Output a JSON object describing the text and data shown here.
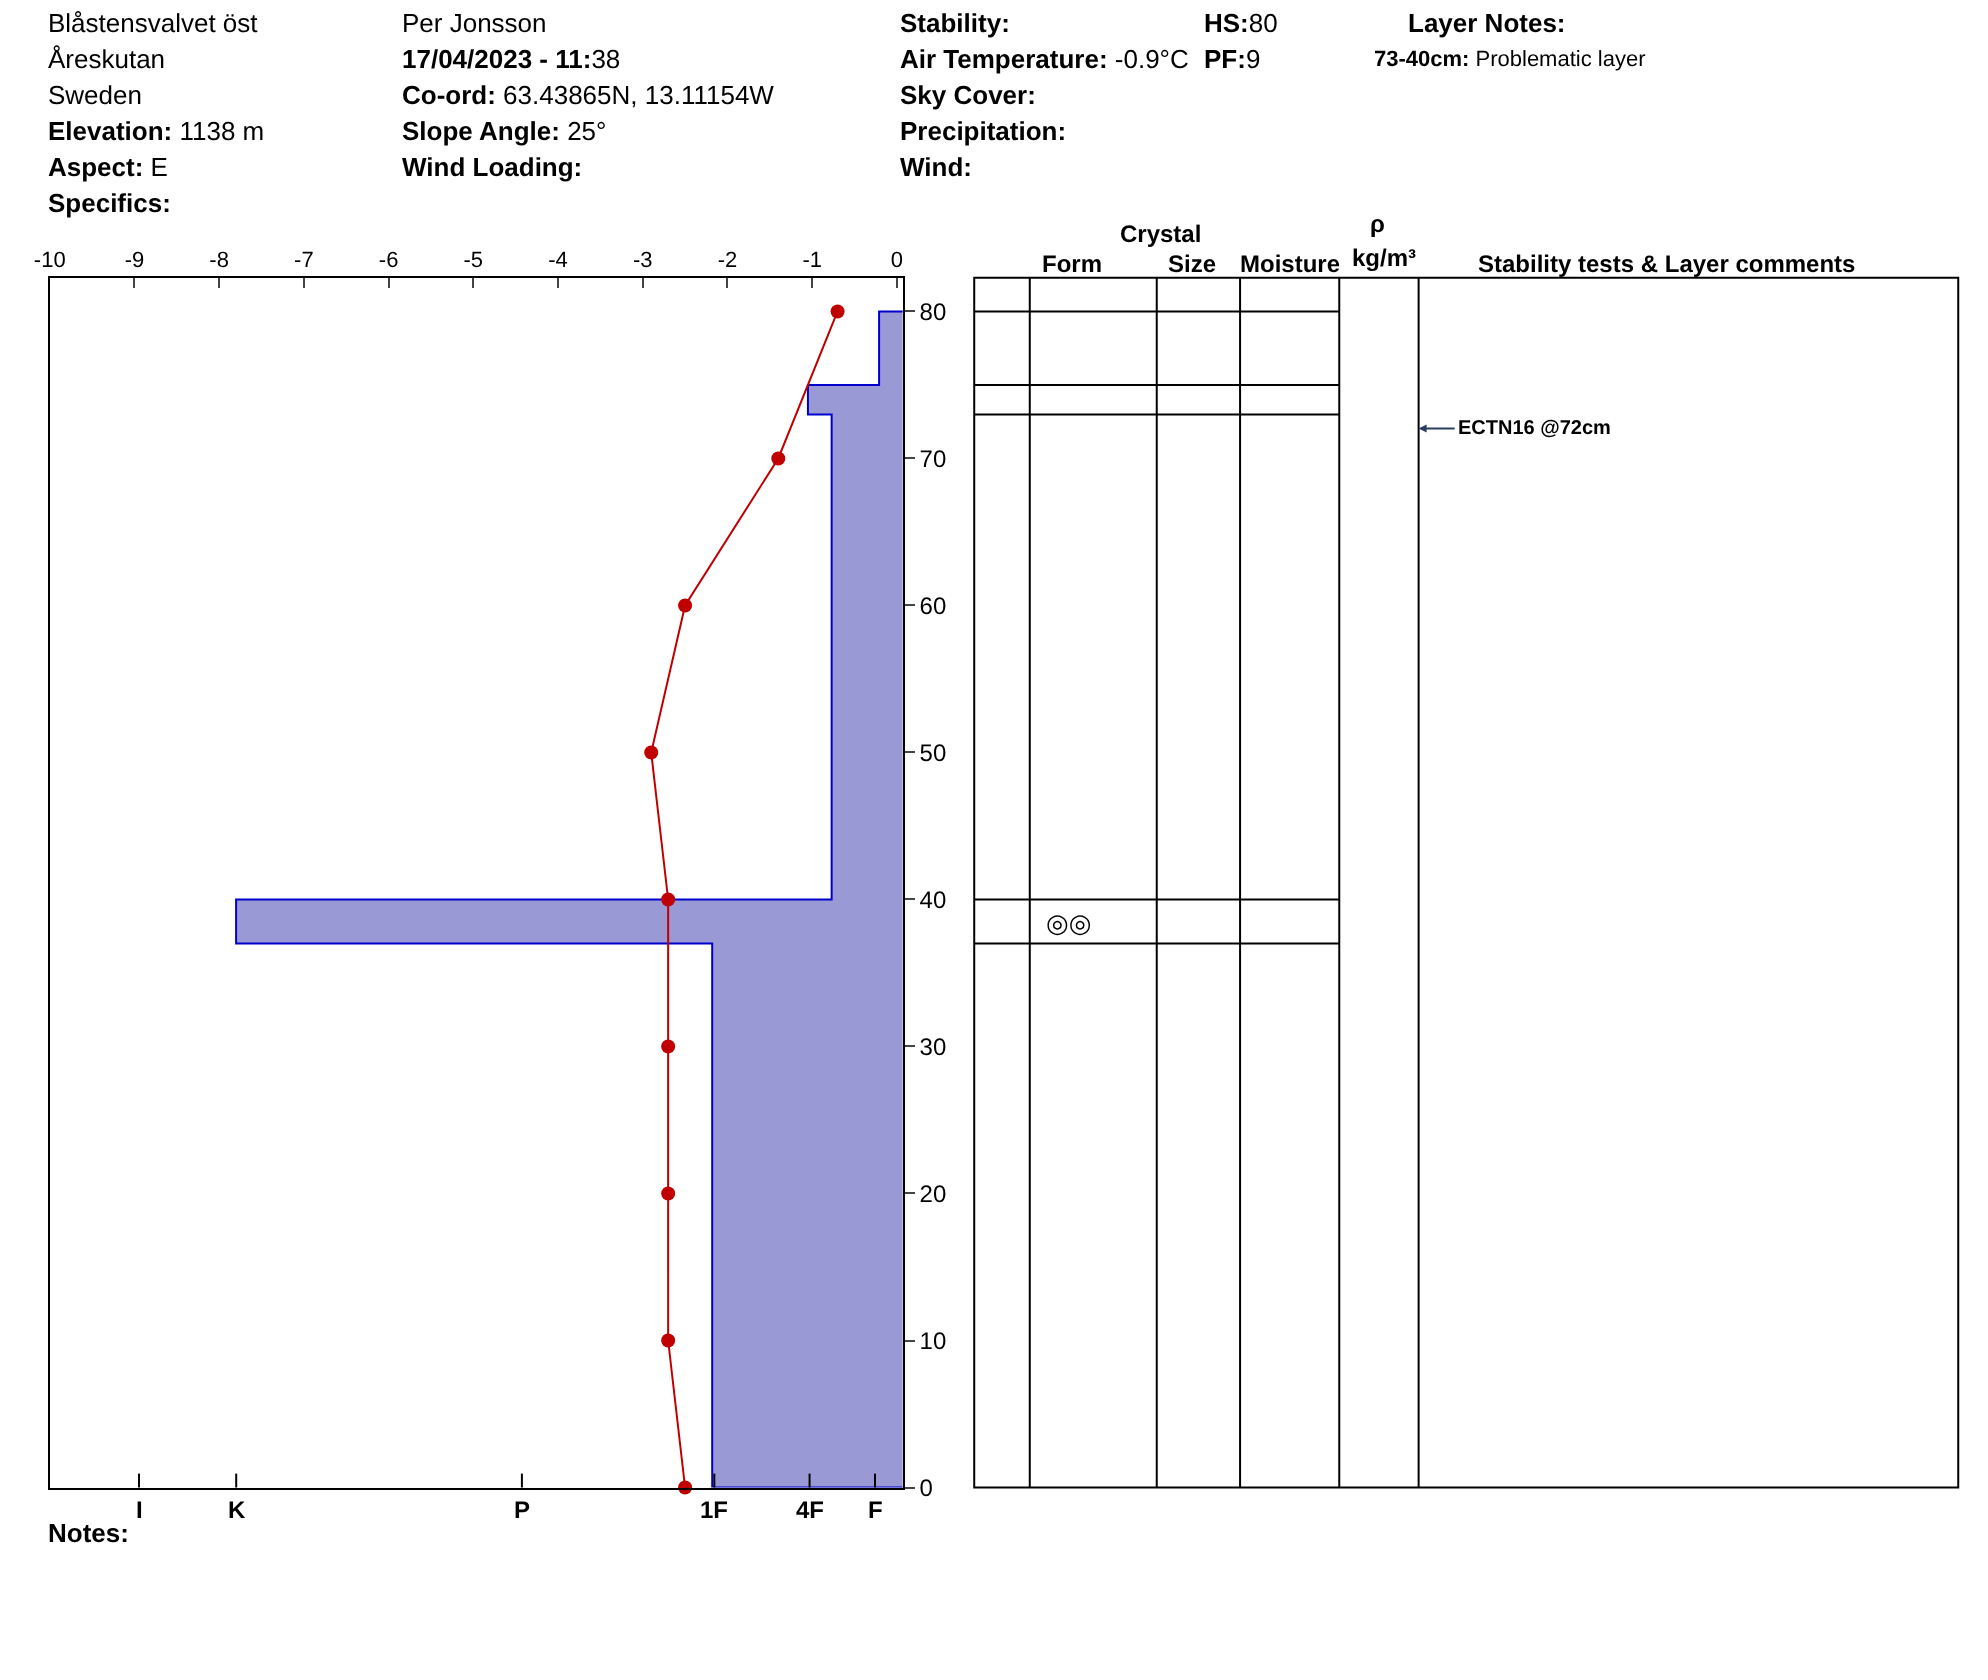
{
  "chart_data": {
    "type": "line",
    "xlim": [
      -10,
      0.07
    ],
    "xticks": [
      -10,
      -9,
      -8,
      -7,
      -6,
      -5,
      -4,
      -3,
      -2,
      -1,
      0
    ],
    "ylim": [
      0,
      82.3
    ],
    "yticks": [
      0,
      10,
      20,
      30,
      40,
      50,
      60,
      70,
      80
    ],
    "series": [
      {
        "type": "area",
        "color": "#9999d6",
        "x": [
          0.07,
          -0.21,
          -0.21,
          -1.05,
          -1.05,
          -0.77,
          -0.77,
          -7.8,
          -7.8,
          -2.18,
          -2.18,
          0.07
        ],
        "values": [
          80,
          80,
          75,
          75,
          73,
          73,
          40,
          40,
          37,
          37,
          0,
          0
        ]
      },
      {
        "color": "#c00000",
        "marker": "circle",
        "x": [
          -0.7,
          -1.4,
          -2.5,
          -2.9,
          -2.7,
          -2.7,
          -2.7,
          -2.7,
          -2.5
        ],
        "values": [
          80,
          70,
          60,
          50,
          40,
          30,
          20,
          10,
          0
        ]
      }
    ],
    "annotations": [
      "Blåstensvalvet öst",
      "Per Jonsson",
      "Stability:",
      "HS:80",
      "Layer Notes:",
      "Åreskutan",
      "17/04/2023 - 11:38",
      "Air Temperature: -0.9°C",
      "PF:9",
      "73-40cm: Problematic layer",
      "Sweden",
      "Co-ord: 63.43865N, 13.11154W",
      "Sky Cover:",
      "Elevation: 1138 m",
      "Slope Angle: 25°",
      "Precipitation:",
      "Aspect: E",
      "Wind Loading:",
      "Wind:",
      "Specifics:",
      "Notes:",
      "Crystal",
      "Form",
      "Size",
      "Moisture",
      "ρ",
      "kg/m³",
      "Stability tests & Layer comments",
      "◎◎",
      "ECTN16 @72cm",
      "I",
      "K",
      "P",
      "1F",
      "4F",
      "F"
    ]
  }
}
